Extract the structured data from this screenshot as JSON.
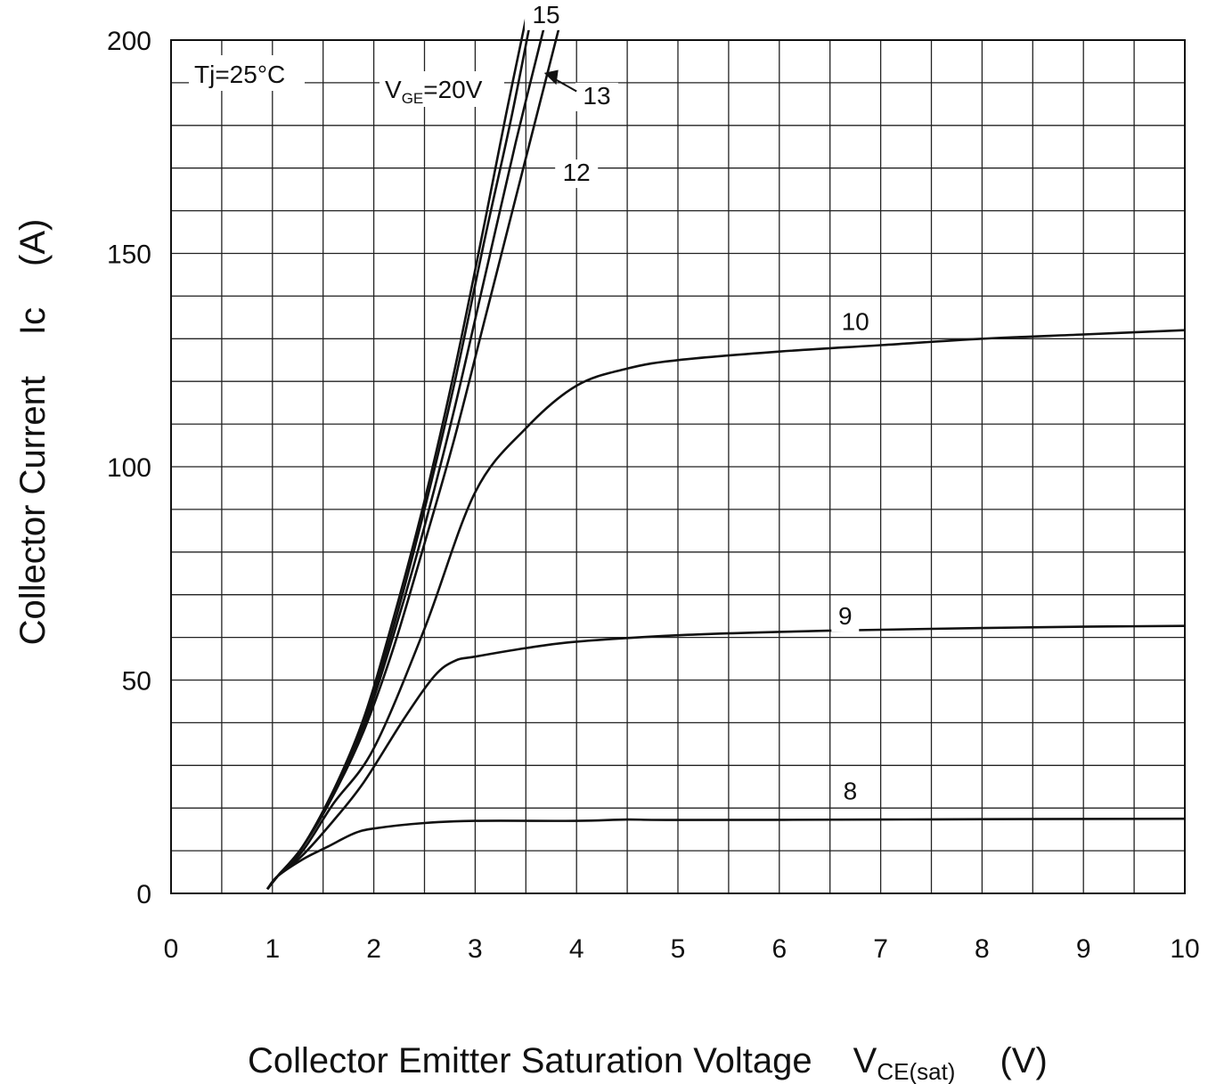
{
  "chart_data": {
    "type": "line",
    "title": "",
    "xlabel": {
      "main": "Collector Emitter Saturation Voltage",
      "symbol": "V",
      "symbol_sub": "CE(sat)",
      "unit": "(V)"
    },
    "ylabel": {
      "main": "Collector Current",
      "symbol": "Ic",
      "unit": "(A)"
    },
    "xlim": [
      0,
      10
    ],
    "ylim": [
      0,
      200
    ],
    "x_ticks": [
      "0",
      "1",
      "2",
      "3",
      "4",
      "5",
      "6",
      "7",
      "8",
      "9",
      "10"
    ],
    "y_ticks": [
      "0",
      "50",
      "100",
      "150",
      "200"
    ],
    "grid": true,
    "annotations": {
      "temperature": "Tj=25°C",
      "vge_symbol": "V",
      "vge_sub": "GE",
      "vge_value": "=20V"
    },
    "series": [
      {
        "name": "20",
        "label": "",
        "points": [
          [
            0.95,
            1
          ],
          [
            1.05,
            4
          ],
          [
            1.3,
            11
          ],
          [
            1.6,
            24
          ],
          [
            1.9,
            41
          ],
          [
            2.2,
            65
          ],
          [
            2.5,
            92
          ],
          [
            2.8,
            123
          ],
          [
            3.1,
            158
          ],
          [
            3.3,
            182
          ],
          [
            3.5,
            205
          ]
        ]
      },
      {
        "name": "15",
        "label": "15",
        "points": [
          [
            0.95,
            1
          ],
          [
            1.05,
            4
          ],
          [
            1.3,
            11
          ],
          [
            1.6,
            24
          ],
          [
            1.9,
            40
          ],
          [
            2.2,
            63
          ],
          [
            2.5,
            90
          ],
          [
            2.8,
            120
          ],
          [
            3.1,
            154
          ],
          [
            3.35,
            181
          ],
          [
            3.55,
            205
          ]
        ]
      },
      {
        "name": "13",
        "label": "13",
        "points": [
          [
            0.95,
            1
          ],
          [
            1.05,
            4
          ],
          [
            1.3,
            11
          ],
          [
            1.6,
            23
          ],
          [
            1.9,
            39
          ],
          [
            2.2,
            61
          ],
          [
            2.5,
            86
          ],
          [
            2.8,
            114
          ],
          [
            3.1,
            145
          ],
          [
            3.4,
            176
          ],
          [
            3.7,
            205
          ]
        ]
      },
      {
        "name": "12",
        "label": "12",
        "points": [
          [
            0.95,
            1
          ],
          [
            1.05,
            4
          ],
          [
            1.3,
            11
          ],
          [
            1.6,
            23
          ],
          [
            1.9,
            38
          ],
          [
            2.2,
            58
          ],
          [
            2.5,
            82
          ],
          [
            2.8,
            107
          ],
          [
            3.1,
            135
          ],
          [
            3.4,
            163
          ],
          [
            3.85,
            205
          ]
        ]
      },
      {
        "name": "10",
        "label": "10",
        "points": [
          [
            0.95,
            1
          ],
          [
            1.05,
            4
          ],
          [
            1.3,
            10
          ],
          [
            1.6,
            21
          ],
          [
            2.0,
            34
          ],
          [
            2.5,
            62
          ],
          [
            3.0,
            94
          ],
          [
            3.5,
            109
          ],
          [
            4.0,
            119
          ],
          [
            4.5,
            123
          ],
          [
            5.0,
            125
          ],
          [
            6.0,
            127
          ],
          [
            7.0,
            128.5
          ],
          [
            8.0,
            130
          ],
          [
            9.0,
            131
          ],
          [
            10.0,
            132
          ]
        ]
      },
      {
        "name": "9",
        "label": "9",
        "points": [
          [
            0.95,
            1
          ],
          [
            1.05,
            4
          ],
          [
            1.3,
            9
          ],
          [
            1.6,
            17
          ],
          [
            1.9,
            26
          ],
          [
            2.3,
            41
          ],
          [
            2.6,
            51
          ],
          [
            2.8,
            54.5
          ],
          [
            3.0,
            55.5
          ],
          [
            3.5,
            57.5
          ],
          [
            4.0,
            59
          ],
          [
            5.0,
            60.5
          ],
          [
            6.0,
            61.3
          ],
          [
            7.0,
            61.8
          ],
          [
            8.0,
            62.2
          ],
          [
            9.0,
            62.5
          ],
          [
            10.0,
            62.7
          ]
        ]
      },
      {
        "name": "8",
        "label": "8",
        "points": [
          [
            0.95,
            1
          ],
          [
            1.05,
            4
          ],
          [
            1.3,
            8
          ],
          [
            1.55,
            11
          ],
          [
            1.8,
            14
          ],
          [
            2.0,
            15.2
          ],
          [
            2.5,
            16.5
          ],
          [
            3.0,
            17
          ],
          [
            4.0,
            17
          ],
          [
            4.5,
            17.3
          ],
          [
            5.0,
            17.2
          ],
          [
            7.0,
            17.3
          ],
          [
            8.0,
            17.4
          ],
          [
            10.0,
            17.5
          ]
        ]
      }
    ],
    "curve_labels": [
      {
        "text": "15",
        "x": 3.7,
        "y": 204
      },
      {
        "text": "13",
        "x": 4.2,
        "y": 185
      },
      {
        "text": "12",
        "x": 4.0,
        "y": 167
      },
      {
        "text": "10",
        "x": 6.75,
        "y": 132
      },
      {
        "text": "9",
        "x": 6.65,
        "y": 63
      },
      {
        "text": "8",
        "x": 6.7,
        "y": 22
      }
    ]
  }
}
